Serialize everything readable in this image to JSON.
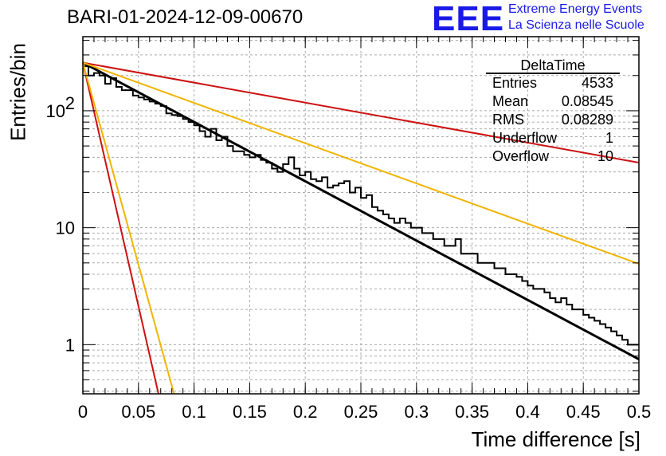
{
  "header": {
    "title": "BARI-01-2024-12-09-00670",
    "logo_text": "EEE",
    "logo_line1": "Extreme Energy Events",
    "logo_line2": "La Scienza nelle Scuole"
  },
  "stats_box": {
    "name": "DeltaTime",
    "rows": [
      {
        "label": "Entries",
        "value": "4533"
      },
      {
        "label": "Mean",
        "value": "0.08545"
      },
      {
        "label": "RMS",
        "value": "0.08289"
      },
      {
        "label": "Underflow",
        "value": "1"
      },
      {
        "label": "Overflow",
        "value": "10"
      }
    ]
  },
  "chart_data": {
    "type": "histogram",
    "xlabel": "Time difference [s]",
    "ylabel": "Entries/bin",
    "xlim": [
      0,
      0.5
    ],
    "ylim": [
      0.38,
      430
    ],
    "yscale": "log",
    "grid": true,
    "x_ticks": [
      "0",
      "0.05",
      "0.1",
      "0.15",
      "0.2",
      "0.25",
      "0.3",
      "0.35",
      "0.4",
      "0.45",
      "0.5"
    ],
    "y_ticks": [
      {
        "value": 1,
        "label": "1"
      },
      {
        "value": 10,
        "label": "10"
      },
      {
        "value": 100,
        "label": "10^2"
      }
    ],
    "bin_width": 0.005,
    "counts": [
      240,
      200,
      210,
      200,
      170,
      190,
      160,
      150,
      150,
      135,
      130,
      125,
      120,
      115,
      110,
      95,
      92,
      90,
      85,
      80,
      75,
      67,
      60,
      70,
      56,
      60,
      50,
      45,
      45,
      42,
      40,
      42,
      38,
      36,
      32,
      30,
      35,
      40,
      32,
      28,
      30,
      26,
      25,
      27,
      22,
      23,
      24,
      25,
      20,
      22,
      18,
      19,
      15,
      14,
      13,
      12,
      11,
      12,
      11,
      10,
      10,
      9,
      9,
      8,
      8,
      7,
      7,
      8,
      6,
      6,
      6,
      5,
      5,
      5,
      4.5,
      4.5,
      4,
      4,
      3.8,
      3.5,
      3.2,
      3,
      3,
      2.8,
      2.5,
      2.3,
      2.5,
      2.2,
      2,
      2,
      1.8,
      1.7,
      1.6,
      1.5,
      1.4,
      1.3,
      1.2,
      1.1,
      1,
      1
    ],
    "fit_curves": [
      {
        "color": "#000000",
        "y0": 258,
        "y_end": 0.75
      },
      {
        "color": "#cc1111",
        "y0": 258,
        "y_end": 36
      },
      {
        "color": "#f2b400",
        "y0": 258,
        "y_end": 4.9
      },
      {
        "color": "#cc1111",
        "y0": 258,
        "y_at_x": [
          0.068,
          0.38
        ]
      },
      {
        "color": "#f2b400",
        "y0": 258,
        "y_at_x": [
          0.082,
          0.38
        ]
      }
    ]
  }
}
